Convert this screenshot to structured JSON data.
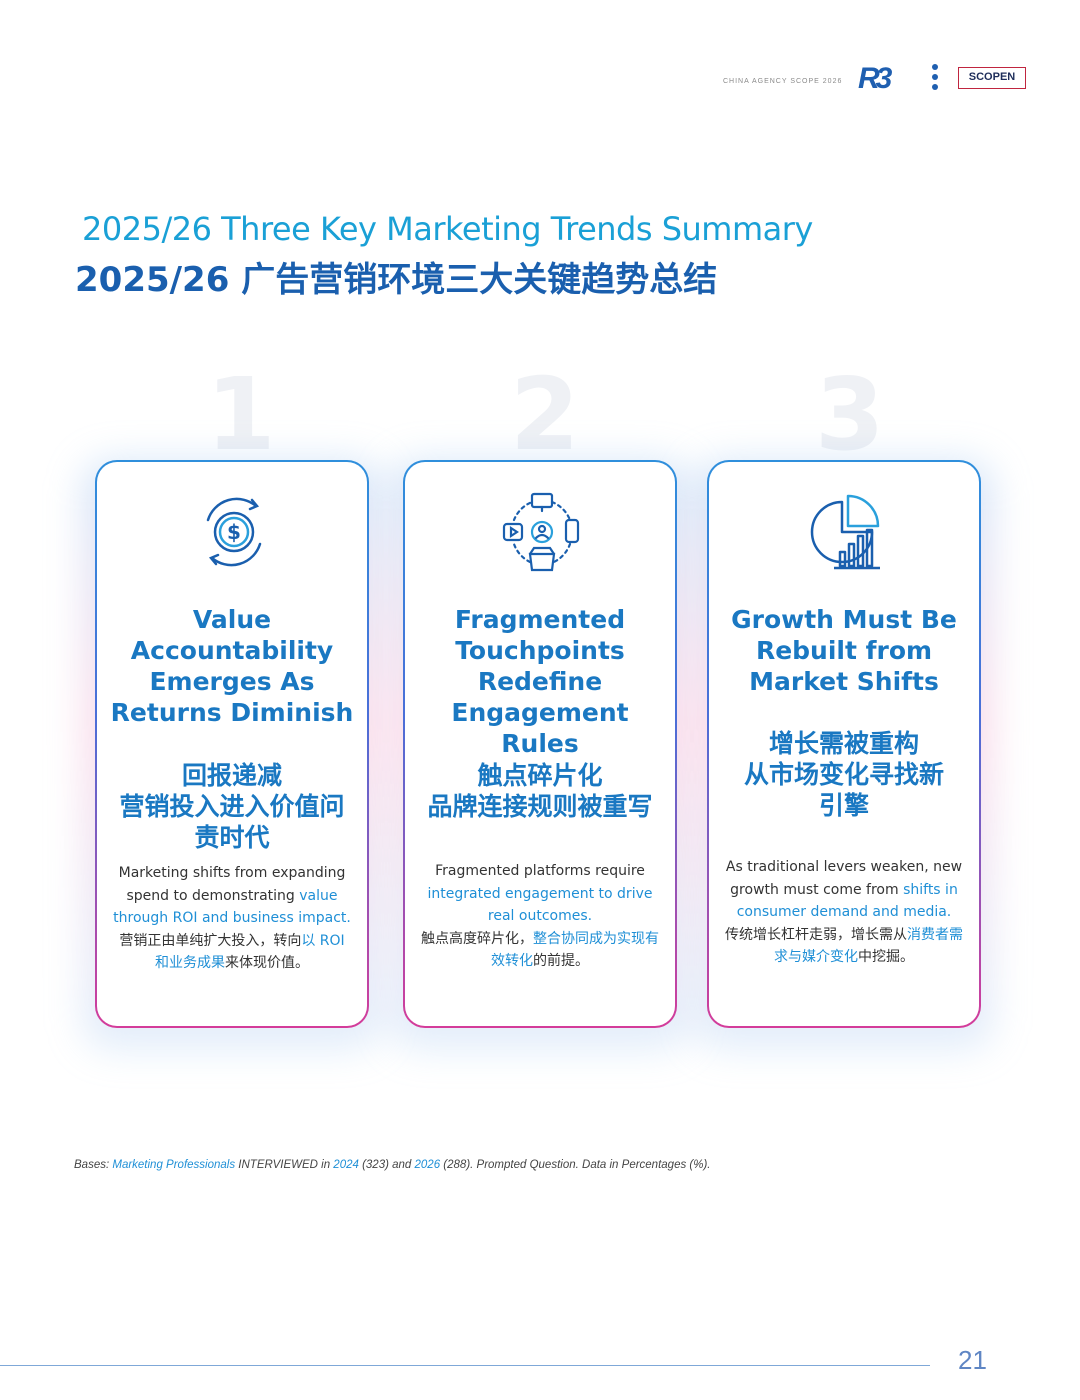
{
  "header": {
    "tag": "CHINA AGENCY SCOPE 2026",
    "logo_r3": "R3",
    "logo_scopen": "SCOPEN"
  },
  "title": {
    "en": "2025/26 Three Key Marketing Trends Summary",
    "zh": "2025/26 广告营销环境三大关键趋势总结"
  },
  "cards": [
    {
      "number": "1",
      "icon": "dollar-cycle-icon",
      "title_en": [
        "Value",
        "Accountability",
        "Emerges As",
        "Returns Diminish"
      ],
      "title_zh": [
        "回报递减",
        "营销投入进入价值问",
        "责时代"
      ],
      "desc": [
        {
          "t": "Marketing shifts from expanding spend to demonstrating ",
          "hl": false
        },
        {
          "t": "value through ROI and business impact.",
          "hl": true
        },
        {
          "t": "营销正由单纯扩大投入，转向",
          "hl": false
        },
        {
          "t": "以 ROI 和业务成果",
          "hl": true
        },
        {
          "t": "来体现价值。",
          "hl": false
        }
      ]
    },
    {
      "number": "2",
      "icon": "touchpoints-network-icon",
      "title_en": [
        "Fragmented",
        "Touchpoints",
        "Redefine",
        "Engagement Rules"
      ],
      "title_zh": [
        "触点碎片化",
        "品牌连接规则被重写"
      ],
      "desc": [
        {
          "t": "Fragmented platforms require ",
          "hl": false
        },
        {
          "t": "integrated engagement to drive real outcomes.",
          "hl": true
        },
        {
          "t": "触点高度碎片化，",
          "hl": false
        },
        {
          "t": "整合协同成为实现有效转化",
          "hl": true
        },
        {
          "t": "的前提。",
          "hl": false
        }
      ]
    },
    {
      "number": "3",
      "icon": "growth-pie-chart-icon",
      "title_en": [
        "Growth Must Be",
        "Rebuilt from",
        "Market Shifts"
      ],
      "title_zh": [
        "增长需被重构",
        "从市场变化寻找新",
        "引擎"
      ],
      "desc": [
        {
          "t": "As traditional levers weaken, new growth must come from ",
          "hl": false
        },
        {
          "t": "shifts in consumer demand and media.",
          "hl": true
        },
        {
          "t": "传统增长杠杆走弱，增长需从",
          "hl": false
        },
        {
          "t": "消费者需求与媒介变化",
          "hl": true
        },
        {
          "t": "中挖掘。",
          "hl": false
        }
      ]
    }
  ],
  "footnote": [
    {
      "t": "Bases: ",
      "hl": false
    },
    {
      "t": "Marketing Professionals",
      "hl": true
    },
    {
      "t": " INTERVIEWED in ",
      "hl": false
    },
    {
      "t": "2024",
      "hl": true
    },
    {
      "t": " (323) and ",
      "hl": false
    },
    {
      "t": "2026",
      "hl": true
    },
    {
      "t": " (288). Prompted Question. Data in Percentages (%).",
      "hl": false
    }
  ],
  "page_number": "21",
  "colors": {
    "title_en": "#1aa0d6",
    "title_zh": "#1a5fae",
    "card_title": "#1a78c2",
    "highlight": "#1f8fd6",
    "card_border_top": "#2f8fdc",
    "card_border_bottom": "#d43c9a"
  }
}
